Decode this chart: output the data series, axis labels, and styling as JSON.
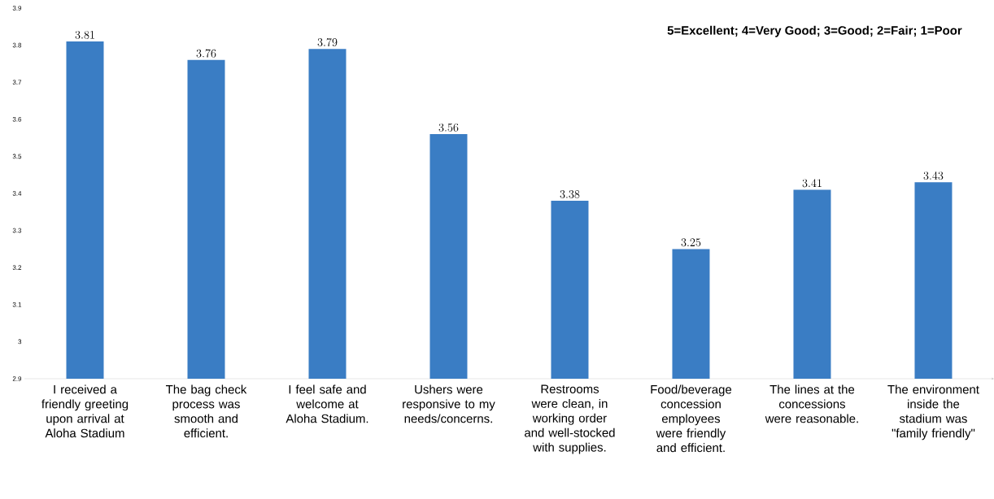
{
  "chart_data": {
    "type": "bar",
    "categories": [
      "I received a friendly greeting upon arrival at Aloha Stadium",
      "The bag check process was smooth and efficient.",
      "I feel safe and welcome at Aloha Stadium.",
      "Ushers were responsive to my needs/concerns.",
      "Restrooms were clean, in working order and well-stocked with supplies.",
      "Food/beverage concession employees were friendly and efficient.",
      "The lines at the concessions were reasonable.",
      "The environment inside the stadium was \"family friendly\""
    ],
    "values": [
      3.81,
      3.76,
      3.79,
      3.56,
      3.38,
      3.25,
      3.41,
      3.43
    ],
    "color": "#3a7dc4",
    "ylim": [
      2.9,
      3.9
    ],
    "yticks": [
      2.9,
      3,
      3.1,
      3.2,
      3.3,
      3.4,
      3.5,
      3.6,
      3.7,
      3.8,
      3.9
    ],
    "data_labels": true,
    "annotations": [
      "**5=Excellent; 4=Very Good; 3=Good; 2=Fair; 1=Poor**"
    ]
  }
}
